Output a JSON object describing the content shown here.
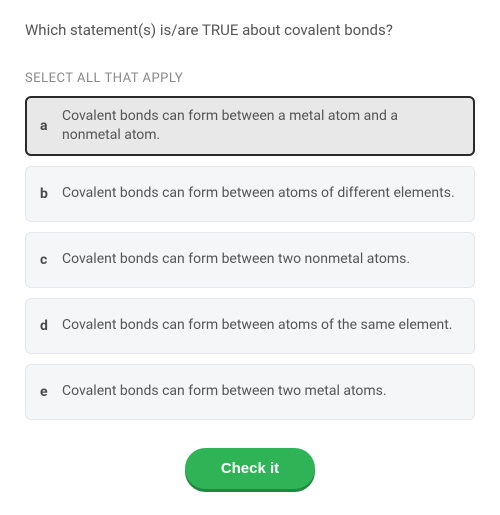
{
  "question": "Which statement(s) is/are TRUE about covalent bonds?",
  "instruction": "SELECT ALL THAT APPLY",
  "options": [
    {
      "letter": "a",
      "text": "Covalent bonds can form between a metal atom and a nonmetal atom.",
      "selected": true
    },
    {
      "letter": "b",
      "text": "Covalent bonds can form between atoms of different elements.",
      "selected": false
    },
    {
      "letter": "c",
      "text": "Covalent bonds can form between two nonmetal atoms.",
      "selected": false
    },
    {
      "letter": "d",
      "text": "Covalent bonds can form between atoms of the same element.",
      "selected": false
    },
    {
      "letter": "e",
      "text": "Covalent bonds can form between two metal atoms.",
      "selected": false
    }
  ],
  "check_button_label": "Check it",
  "colors": {
    "option_bg": "#f5f6f8",
    "option_selected_bg": "#e8e8e8",
    "option_border": "#e5e7eb",
    "option_selected_border": "#2a2a2a",
    "text_main": "#555555",
    "text_muted": "#888888",
    "button_bg": "#2fb357",
    "button_shadow": "#1f8a3e",
    "button_text": "#ffffff"
  }
}
